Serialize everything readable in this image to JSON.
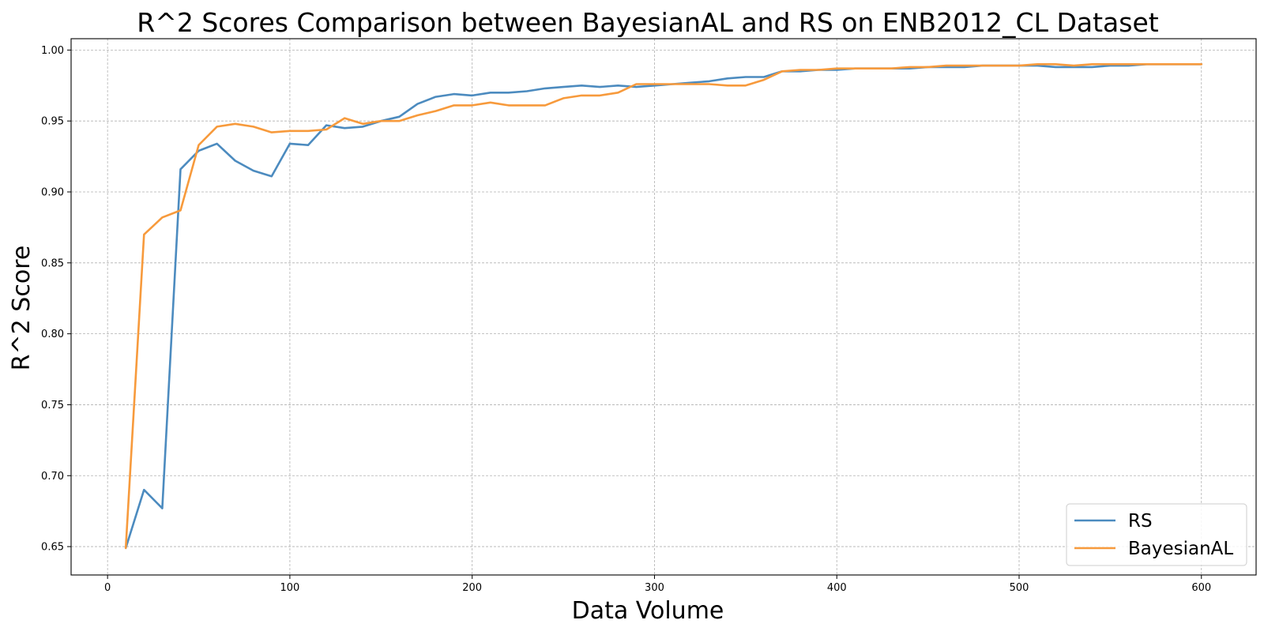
{
  "chart_data": {
    "type": "line",
    "title": "R^2 Scores Comparison between BayesianAL and RS on ENB2012_CL Dataset",
    "xlabel": "Data Volume",
    "ylabel": "R^2 Score",
    "xlim": [
      -20,
      630
    ],
    "ylim": [
      0.63,
      1.008
    ],
    "xticks": [
      0,
      100,
      200,
      300,
      400,
      500,
      600
    ],
    "xtick_labels": [
      "0",
      "100",
      "200",
      "300",
      "400",
      "500",
      "600"
    ],
    "yticks": [
      0.65,
      0.7,
      0.75,
      0.8,
      0.85,
      0.9,
      0.95,
      1.0
    ],
    "ytick_labels": [
      "0.65",
      "0.70",
      "0.75",
      "0.80",
      "0.85",
      "0.90",
      "0.95",
      "1.00"
    ],
    "grid": true,
    "legend_position": "bottom-right",
    "x": [
      10,
      20,
      30,
      40,
      50,
      60,
      70,
      80,
      90,
      100,
      110,
      120,
      130,
      140,
      150,
      160,
      170,
      180,
      190,
      200,
      210,
      220,
      230,
      240,
      250,
      260,
      270,
      280,
      290,
      300,
      310,
      320,
      330,
      340,
      350,
      360,
      370,
      380,
      390,
      400,
      410,
      420,
      430,
      440,
      450,
      460,
      470,
      480,
      490,
      500,
      510,
      520,
      530,
      540,
      550,
      560,
      570,
      580,
      590,
      600
    ],
    "series": [
      {
        "name": "RS",
        "color": "#4c8bbf",
        "values": [
          0.649,
          0.69,
          0.677,
          0.916,
          0.929,
          0.934,
          0.922,
          0.915,
          0.911,
          0.934,
          0.933,
          0.947,
          0.945,
          0.946,
          0.95,
          0.953,
          0.962,
          0.967,
          0.969,
          0.968,
          0.97,
          0.97,
          0.971,
          0.973,
          0.974,
          0.975,
          0.974,
          0.975,
          0.974,
          0.975,
          0.976,
          0.977,
          0.978,
          0.98,
          0.981,
          0.981,
          0.985,
          0.985,
          0.986,
          0.986,
          0.987,
          0.987,
          0.987,
          0.987,
          0.988,
          0.988,
          0.988,
          0.989,
          0.989,
          0.989,
          0.989,
          0.988,
          0.988,
          0.988,
          0.989,
          0.989,
          0.99,
          0.99,
          0.99,
          0.99
        ]
      },
      {
        "name": "BayesianAL",
        "color": "#f79a3c",
        "values": [
          0.649,
          0.87,
          0.882,
          0.887,
          0.933,
          0.946,
          0.948,
          0.946,
          0.942,
          0.943,
          0.943,
          0.944,
          0.952,
          0.948,
          0.95,
          0.95,
          0.954,
          0.957,
          0.961,
          0.961,
          0.963,
          0.961,
          0.961,
          0.961,
          0.966,
          0.968,
          0.968,
          0.97,
          0.976,
          0.976,
          0.976,
          0.976,
          0.976,
          0.975,
          0.975,
          0.979,
          0.985,
          0.986,
          0.986,
          0.987,
          0.987,
          0.987,
          0.987,
          0.988,
          0.988,
          0.989,
          0.989,
          0.989,
          0.989,
          0.989,
          0.99,
          0.99,
          0.989,
          0.99,
          0.99,
          0.99,
          0.99,
          0.99,
          0.99,
          0.99
        ]
      }
    ]
  }
}
